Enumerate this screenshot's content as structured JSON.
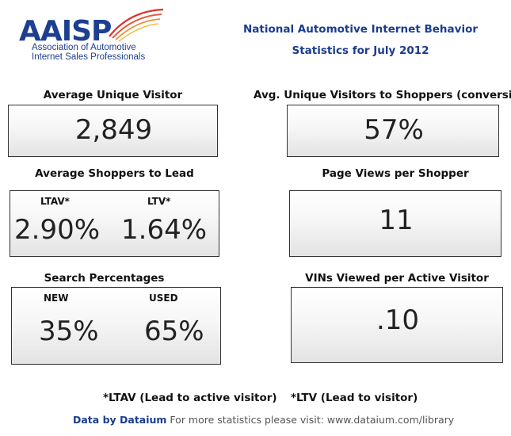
{
  "logo": {
    "wordmark": "AAISP",
    "line1": "Association of Automotive",
    "line2": "Internet Sales Professionals"
  },
  "header": {
    "line1": "National Automotive Internet Behavior",
    "line2": "Statistics for July 2012"
  },
  "metrics": {
    "avg_unique_visitor": {
      "label": "Average Unique Visitor",
      "value": "2,849"
    },
    "conversion": {
      "label": "Avg. Unique Visitors to Shoppers (conversion)",
      "value": "57%"
    },
    "shoppers_to_lead": {
      "label": "Average Shoppers to Lead",
      "ltav_label": "LTAV*",
      "ltav_value": "2.90%",
      "ltv_label": "LTV*",
      "ltv_value": "1.64%"
    },
    "page_views": {
      "label": "Page Views per Shopper",
      "value": "11"
    },
    "search": {
      "label": "Search Percentages",
      "new_label": "NEW",
      "new_value": "35%",
      "used_label": "USED",
      "used_value": "65%"
    },
    "vins_viewed": {
      "label": "VINs Viewed per Active Visitor",
      "value": ".10"
    }
  },
  "footnotes": {
    "ltav": "*LTAV (Lead to active visitor)",
    "ltv": "*LTV (Lead to visitor)"
  },
  "credit": {
    "brand": "Data by Dataium",
    "text": " For more statistics please visit: www.dataium.com/library"
  },
  "colors": {
    "brand_blue": "#1a3c8c",
    "swoosh_red": "#d9342b"
  }
}
